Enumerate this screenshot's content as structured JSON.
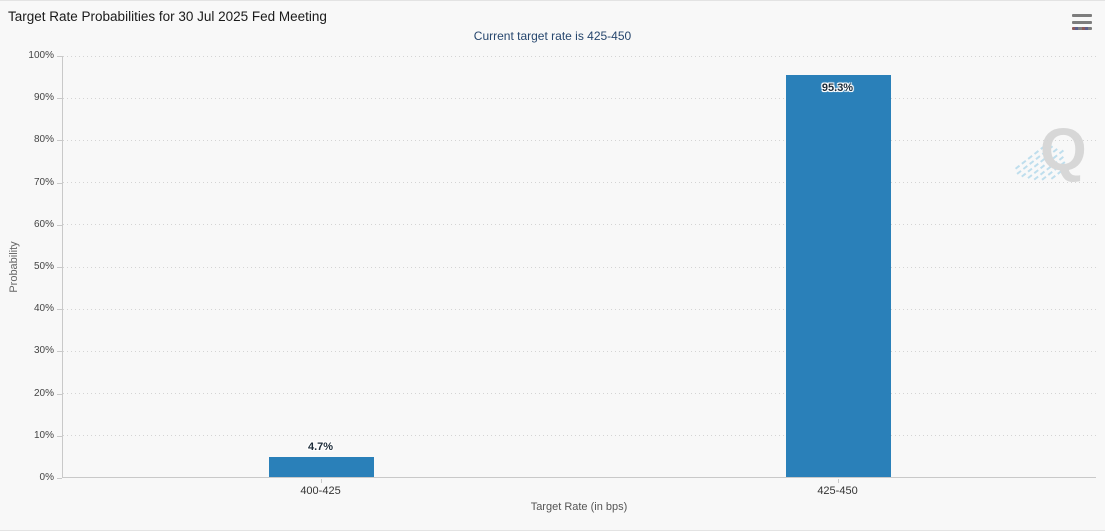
{
  "header": {
    "title": "Target Rate Probabilities for 30 Jul 2025 Fed Meeting",
    "subtitle": "Current target rate is 425-450",
    "menu_icon": "hamburger-menu-icon"
  },
  "watermark": {
    "letter": "Q",
    "icon": "quikstrike-q-watermark-icon"
  },
  "colors": {
    "bar": "#2a80b9",
    "subtitle_text": "#26466d",
    "watermark_q": "#d4d4d4",
    "watermark_dashes": "#b9dcec"
  },
  "chart_data": {
    "type": "bar",
    "title": "Target Rate Probabilities for 30 Jul 2025 Fed Meeting",
    "subtitle": "Current target rate is 425-450",
    "categories": [
      "400-425",
      "425-450"
    ],
    "values": [
      4.7,
      95.3
    ],
    "value_labels": [
      "4.7%",
      "95.3%"
    ],
    "xlabel": "Target Rate (in bps)",
    "ylabel": "Probability",
    "ylim": [
      0,
      100
    ],
    "ytick_step": 10,
    "ytick_labels": [
      "0%",
      "10%",
      "20%",
      "30%",
      "40%",
      "50%",
      "60%",
      "70%",
      "80%",
      "90%",
      "100%"
    ],
    "grid": "dotted-horizontal",
    "legend_position": "none",
    "bar_color": "#2a80b9"
  }
}
